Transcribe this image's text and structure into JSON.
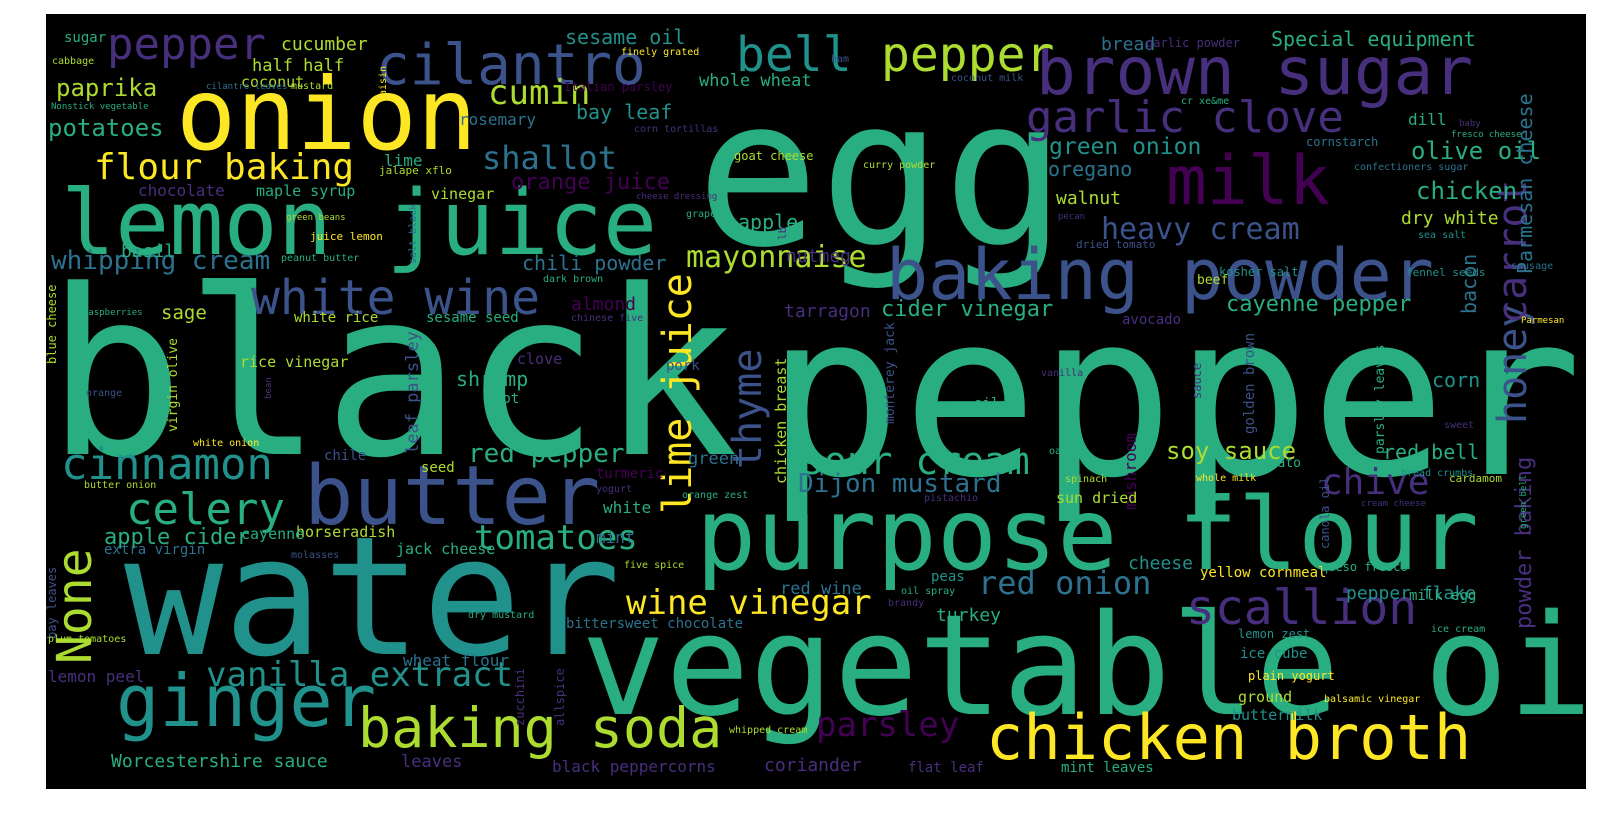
{
  "palette": {
    "purple": "#440154",
    "indigo": "#472f7d",
    "blue": "#3b528b",
    "steel": "#2c728e",
    "teal": "#21918c",
    "green": "#28ae80",
    "lime": "#5ec962",
    "chartreuse": "#addc30",
    "yellow": "#fde725"
  },
  "words": [
    {
      "text": "black",
      "c": "green"
    },
    {
      "text": "pepper",
      "c": "green"
    },
    {
      "text": "egg",
      "c": "green"
    },
    {
      "text": "water",
      "c": "teal"
    },
    {
      "text": "vegetable oil",
      "c": "green"
    },
    {
      "text": "purpose flour",
      "c": "green"
    },
    {
      "text": "brown sugar",
      "c": "indigo"
    },
    {
      "text": "onion",
      "c": "yellow"
    },
    {
      "text": "lemon juice",
      "c": "green"
    },
    {
      "text": "baking powder",
      "c": "blue"
    },
    {
      "text": "butter",
      "c": "blue"
    },
    {
      "text": "milk",
      "c": "purple"
    },
    {
      "text": "chicken broth",
      "c": "yellow"
    },
    {
      "text": "ginger",
      "c": "teal"
    },
    {
      "text": "baking soda",
      "c": "chartreuse"
    },
    {
      "text": "cilantro",
      "c": "blue"
    },
    {
      "text": "bell",
      "c": "teal"
    },
    {
      "text": "garlic clove",
      "c": "indigo"
    },
    {
      "text": "white wine",
      "c": "blue"
    },
    {
      "text": "scallion",
      "c": "indigo"
    },
    {
      "text": "lime juice",
      "c": "yellow"
    },
    {
      "text": "pepper",
      "c": "chartreuse"
    },
    {
      "text": "cinnamon",
      "c": "teal"
    },
    {
      "text": "celery",
      "c": "green"
    },
    {
      "text": "None",
      "c": "chartreuse"
    },
    {
      "text": "thyme",
      "c": "blue"
    },
    {
      "text": "honey",
      "c": "blue"
    },
    {
      "text": "carrot",
      "c": "indigo"
    },
    {
      "text": "sour cream",
      "c": "green"
    },
    {
      "text": "vanilla extract",
      "c": "teal"
    },
    {
      "text": "tomatoes",
      "c": "green"
    },
    {
      "text": "flour baking",
      "c": "yellow"
    },
    {
      "text": "shallot",
      "c": "steel"
    },
    {
      "text": "cumin",
      "c": "chartreuse"
    },
    {
      "text": "parsley",
      "c": "purple"
    },
    {
      "text": "wine vinegar",
      "c": "yellow"
    },
    {
      "text": "red onion",
      "c": "steel"
    },
    {
      "text": "chive",
      "c": "indigo"
    },
    {
      "text": "mayonnaise",
      "c": "chartreuse"
    },
    {
      "text": "heavy cream",
      "c": "blue"
    },
    {
      "text": "pepper",
      "c": "indigo"
    },
    {
      "text": "paprika",
      "c": "chartreuse"
    },
    {
      "text": "potatoes",
      "c": "green"
    },
    {
      "text": "whipping cream",
      "c": "steel"
    },
    {
      "text": "Dijon mustard",
      "c": "steel"
    },
    {
      "text": "red pepper",
      "c": "green"
    },
    {
      "text": "soy sauce",
      "c": "chartreuse"
    },
    {
      "text": "green onion",
      "c": "teal"
    },
    {
      "text": "olive oil",
      "c": "green"
    },
    {
      "text": "chicken",
      "c": "green"
    },
    {
      "text": "Parmesan cheese",
      "c": "steel"
    },
    {
      "text": "cayenne pepper",
      "c": "green"
    },
    {
      "text": "cider vinegar",
      "c": "green"
    },
    {
      "text": "apple cider",
      "c": "green"
    },
    {
      "text": "powder baking",
      "c": "indigo"
    },
    {
      "text": "orange juice",
      "c": "purple"
    },
    {
      "text": "chili powder",
      "c": "steel"
    },
    {
      "text": "sesame oil",
      "c": "teal"
    },
    {
      "text": "Special equipment",
      "c": "green"
    },
    {
      "text": "bay leaf",
      "c": "teal"
    },
    {
      "text": "oregano",
      "c": "steel"
    },
    {
      "text": "walnut",
      "c": "chartreuse"
    },
    {
      "text": "dry white",
      "c": "chartreuse"
    },
    {
      "text": "apple",
      "c": "green"
    },
    {
      "text": "bacon",
      "c": "steel"
    },
    {
      "text": "red bell",
      "c": "green"
    },
    {
      "text": "corn",
      "c": "teal"
    },
    {
      "text": "pepper flake",
      "c": "teal"
    },
    {
      "text": "cheese",
      "c": "teal"
    },
    {
      "text": "turkey",
      "c": "green"
    },
    {
      "text": "red wine",
      "c": "steel"
    },
    {
      "text": "nutmeg",
      "c": "indigo"
    },
    {
      "text": "tarragon",
      "c": "indigo"
    },
    {
      "text": "almond",
      "c": "purple"
    },
    {
      "text": "shrimp",
      "c": "green"
    },
    {
      "text": "sage",
      "c": "chartreuse"
    },
    {
      "text": "basil",
      "c": "green"
    },
    {
      "text": "rosemary",
      "c": "steel"
    },
    {
      "text": "whole wheat",
      "c": "green"
    },
    {
      "text": "bread",
      "c": "steel"
    },
    {
      "text": "cucumber",
      "c": "chartreuse"
    },
    {
      "text": "half half",
      "c": "chartreuse"
    },
    {
      "text": "coconut",
      "c": "chartreuse"
    },
    {
      "text": "lime",
      "c": "green"
    },
    {
      "text": "vinegar",
      "c": "chartreuse"
    },
    {
      "text": "chocolate",
      "c": "indigo"
    },
    {
      "text": "maple syrup",
      "c": "green"
    },
    {
      "text": "rice vinegar",
      "c": "chartreuse"
    },
    {
      "text": "leaf parsley",
      "c": "blue"
    },
    {
      "text": "chicken breast",
      "c": "chartreuse"
    },
    {
      "text": "monterey jack",
      "c": "blue"
    },
    {
      "text": "golden brown",
      "c": "blue"
    },
    {
      "text": "parsley leaves",
      "c": "green"
    },
    {
      "text": "mushroom",
      "c": "purple"
    },
    {
      "text": "sun dried",
      "c": "chartreuse"
    },
    {
      "text": "tomato",
      "c": "green"
    },
    {
      "text": "canola oil",
      "c": "blue"
    },
    {
      "text": "sauce",
      "c": "indigo"
    },
    {
      "text": "green",
      "c": "steel"
    },
    {
      "text": "white",
      "c": "green"
    },
    {
      "text": "turmeric",
      "c": "purple"
    },
    {
      "text": "mint",
      "c": "steel"
    },
    {
      "text": "horseradish",
      "c": "chartreuse"
    },
    {
      "text": "cayenne",
      "c": "green"
    },
    {
      "text": "jack cheese",
      "c": "green"
    },
    {
      "text": "extra virgin",
      "c": "steel"
    },
    {
      "text": "Worcestershire sauce",
      "c": "green"
    },
    {
      "text": "lemon peel",
      "c": "indigo"
    },
    {
      "text": "wheat flour",
      "c": "steel"
    },
    {
      "text": "leaves",
      "c": "indigo"
    },
    {
      "text": "black peppercorns",
      "c": "indigo"
    },
    {
      "text": "coriander",
      "c": "indigo"
    },
    {
      "text": "flat leaf",
      "c": "indigo"
    },
    {
      "text": "mint leaves",
      "c": "green"
    },
    {
      "text": "buttermilk",
      "c": "teal"
    },
    {
      "text": "ground",
      "c": "chartreuse"
    },
    {
      "text": "plain yogurt",
      "c": "yellow"
    },
    {
      "text": "ice cube",
      "c": "teal"
    },
    {
      "text": "lemon zest",
      "c": "teal"
    },
    {
      "text": "milk egg",
      "c": "green"
    },
    {
      "text": "yellow cornmeal",
      "c": "yellow"
    },
    {
      "text": "bittersweet chocolate",
      "c": "steel"
    },
    {
      "text": "allspice",
      "c": "indigo"
    },
    {
      "text": "zucchini",
      "c": "indigo"
    },
    {
      "text": "virgin olive",
      "c": "chartreuse"
    },
    {
      "text": "blue cheese",
      "c": "chartreuse"
    },
    {
      "text": "bay leaves",
      "c": "blue"
    },
    {
      "text": "clove",
      "c": "indigo"
    },
    {
      "text": "hot",
      "c": "green"
    },
    {
      "text": "pork",
      "c": "blue"
    },
    {
      "text": "peas",
      "c": "teal"
    },
    {
      "text": "oil",
      "c": "green"
    },
    {
      "text": "beef",
      "c": "chartreuse"
    },
    {
      "text": "avocado",
      "c": "indigo"
    },
    {
      "text": "seed",
      "c": "chartreuse"
    },
    {
      "text": "chile",
      "c": "blue"
    },
    {
      "text": "white rice",
      "c": "chartreuse"
    },
    {
      "text": "sesame seed",
      "c": "green"
    },
    {
      "text": "dill",
      "c": "green"
    },
    {
      "text": "sugar",
      "c": "green"
    },
    {
      "text": "cabbage",
      "c": "chartreuse"
    },
    {
      "text": "raisin",
      "c": "yellow"
    },
    {
      "text": "mustard",
      "c": "chartreuse"
    },
    {
      "text": "cilantro leaves",
      "c": "steel"
    },
    {
      "text": "Nonstick vegetable",
      "c": "green"
    },
    {
      "text": "finely grated",
      "c": "yellow"
    },
    {
      "text": "Italian parsley",
      "c": "purple"
    },
    {
      "text": "corn tortillas",
      "c": "indigo"
    },
    {
      "text": "ham",
      "c": "blue"
    },
    {
      "text": "garlic powder",
      "c": "indigo"
    },
    {
      "text": "coconut milk",
      "c": "blue"
    },
    {
      "text": "cr xe&me",
      "c": "green"
    },
    {
      "text": "baby",
      "c": "indigo"
    },
    {
      "text": "fresco cheese",
      "c": "green"
    },
    {
      "text": "cornstarch",
      "c": "steel"
    },
    {
      "text": "confectioners sugar",
      "c": "steel"
    },
    {
      "text": "goat cheese",
      "c": "chartreuse"
    },
    {
      "text": "curry powder",
      "c": "chartreuse"
    },
    {
      "text": "jalape xflo",
      "c": "chartreuse"
    },
    {
      "text": "cheese dressing",
      "c": "indigo"
    },
    {
      "text": "green beans",
      "c": "chartreuse"
    },
    {
      "text": "grape",
      "c": "green"
    },
    {
      "text": "juice lemon",
      "c": "yellow"
    },
    {
      "text": "salt black",
      "c": "steel"
    },
    {
      "text": "lb",
      "c": "indigo"
    },
    {
      "text": "pecan",
      "c": "indigo"
    },
    {
      "text": "dried tomato",
      "c": "blue"
    },
    {
      "text": "kosher salt",
      "c": "teal"
    },
    {
      "text": "sea salt",
      "c": "teal"
    },
    {
      "text": "fennel seeds",
      "c": "teal"
    },
    {
      "text": "sausage",
      "c": "steel"
    },
    {
      "text": "peanut butter",
      "c": "green"
    },
    {
      "text": "dark brown",
      "c": "green"
    },
    {
      "text": "raspberries",
      "c": "green"
    },
    {
      "text": "chinese five",
      "c": "indigo"
    },
    {
      "text": "Parmesan",
      "c": "yellow"
    },
    {
      "text": "vanilla",
      "c": "indigo"
    },
    {
      "text": "orange",
      "c": "blue"
    },
    {
      "text": "bean",
      "c": "indigo"
    },
    {
      "text": "sweet",
      "c": "indigo"
    },
    {
      "text": "white onion",
      "c": "yellow"
    },
    {
      "text": "oat",
      "c": "green"
    },
    {
      "text": "spinach",
      "c": "chartreuse"
    },
    {
      "text": "whole milk",
      "c": "yellow"
    },
    {
      "text": "bread crumbs",
      "c": "teal"
    },
    {
      "text": "cardamom",
      "c": "chartreuse"
    },
    {
      "text": "butter onion",
      "c": "chartreuse"
    },
    {
      "text": "yogurt",
      "c": "indigo"
    },
    {
      "text": "orange zest",
      "c": "green"
    },
    {
      "text": "pistachio",
      "c": "indigo"
    },
    {
      "text": "cream cheese",
      "c": "indigo"
    },
    {
      "text": "green bell",
      "c": "green"
    },
    {
      "text": "queso fresco",
      "c": "green"
    },
    {
      "text": "molasses",
      "c": "blue"
    },
    {
      "text": "five spice",
      "c": "chartreuse"
    },
    {
      "text": "oil spray",
      "c": "green"
    },
    {
      "text": "brandy",
      "c": "indigo"
    },
    {
      "text": "dry mustard",
      "c": "green"
    },
    {
      "text": "plum tomatoes",
      "c": "chartreuse"
    },
    {
      "text": "ice cream",
      "c": "green"
    },
    {
      "text": "whipped cream",
      "c": "chartreuse"
    },
    {
      "text": "balsamic vinegar",
      "c": "yellow"
    }
  ]
}
